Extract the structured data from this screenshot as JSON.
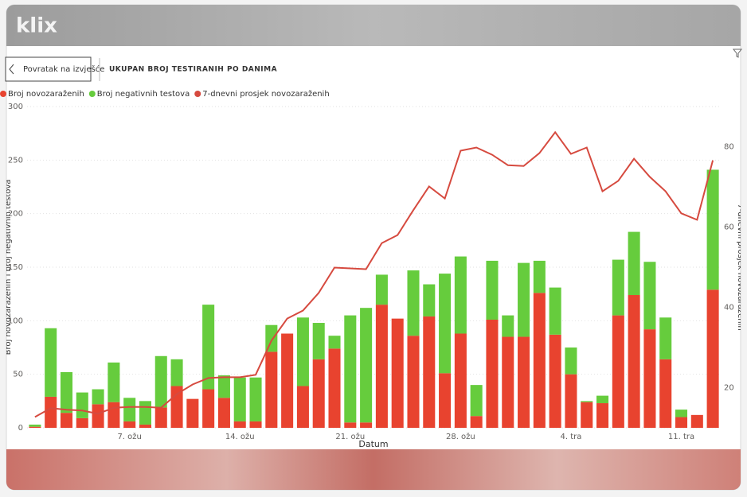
{
  "header": {
    "logo": "klix"
  },
  "toolbar": {
    "back_button": "Povratak na izvješće"
  },
  "chart_data": {
    "type": "bar",
    "stacked": true,
    "title": "UKUPAN BROJ TESTIRANIH PO DANIMA",
    "x_label": "Datum",
    "y_label": "Broj novozaraženih i broj negativnih testova",
    "y2_label": "7-dnevni prosjek novozaraženih",
    "categories": [
      null,
      null,
      null,
      null,
      null,
      null,
      "7. ožu",
      null,
      null,
      null,
      null,
      null,
      null,
      "14. ožu",
      null,
      null,
      null,
      null,
      null,
      null,
      "21. ožu",
      null,
      null,
      null,
      null,
      null,
      null,
      "28. ožu",
      null,
      null,
      null,
      null,
      null,
      null,
      "4. tra",
      null,
      null,
      null,
      null,
      null,
      null,
      "11. tra",
      null,
      null
    ],
    "series": [
      {
        "name": "Broj novozaraženih",
        "color": "#e8432f",
        "values": [
          1,
          29,
          14,
          9,
          22,
          24,
          6,
          3,
          19,
          39,
          27,
          36,
          28,
          6,
          6,
          71,
          88,
          39,
          64,
          74,
          5,
          5,
          115,
          102,
          86,
          104,
          51,
          88,
          11,
          101,
          85,
          85,
          126,
          87,
          50,
          24,
          23,
          105,
          124,
          92,
          64,
          10,
          12,
          129
        ]
      },
      {
        "name": "Broj negativnih testova",
        "color": "#66cc3d",
        "values": [
          2,
          64,
          38,
          24,
          14,
          37,
          22,
          22,
          48,
          25,
          0,
          79,
          21,
          41,
          41,
          25,
          0,
          64,
          34,
          12,
          100,
          107,
          28,
          0,
          61,
          30,
          93,
          72,
          29,
          55,
          20,
          69,
          30,
          44,
          25,
          1,
          7,
          52,
          59,
          63,
          39,
          7,
          0,
          112
        ]
      },
      {
        "name": "7-dnevni prosjek novozaraženih",
        "color": "#d64a3f",
        "type": "line",
        "axis": "y2",
        "values": [
          12.7,
          14.9,
          14.5,
          14.3,
          13.5,
          15,
          15.2,
          15.2,
          15,
          18.4,
          20.8,
          22.4,
          22.6,
          22.6,
          23.2,
          31.7,
          37.2,
          39.2,
          43.6,
          49.9,
          49.7,
          49.5,
          56,
          58,
          64.2,
          70.1,
          67.1,
          79,
          79.8,
          78,
          75.4,
          75.2,
          78.4,
          83.6,
          78.2,
          79.8,
          68.9,
          71.5,
          77,
          72.5,
          68.9,
          63.4,
          61.8,
          76.6
        ]
      }
    ],
    "ylim": [
      0,
      300
    ],
    "yticks": [
      0,
      50,
      100,
      150,
      200,
      250,
      300
    ],
    "y2lim": [
      10,
      90
    ],
    "y2ticks": [
      20,
      40,
      60,
      80
    ],
    "grid": true,
    "legend": "top-left"
  }
}
